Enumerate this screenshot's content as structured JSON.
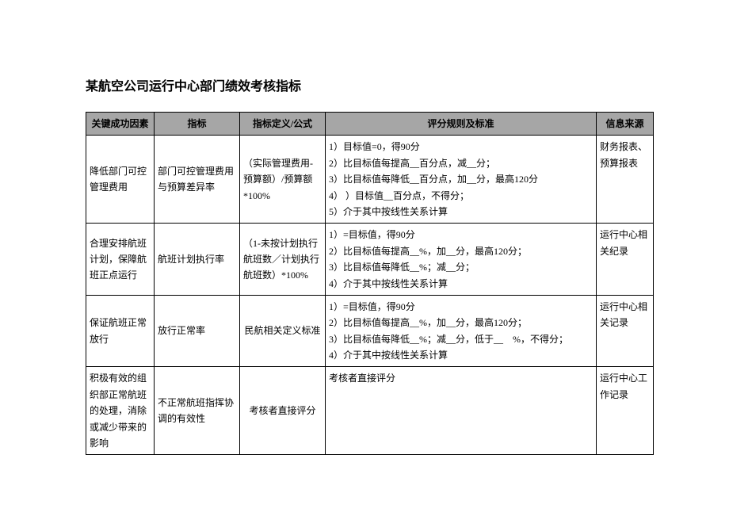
{
  "title": "某航空公司运行中心部门绩效考核指标",
  "background_color": "#ffffff",
  "header_bg": "#a6a6a6",
  "border_color": "#000000",
  "columns": [
    {
      "key": "factor",
      "label": "关键成功因素",
      "class": "col-factor"
    },
    {
      "key": "metric",
      "label": "指标",
      "class": "col-metric"
    },
    {
      "key": "formula",
      "label": "指标定义/公式",
      "class": "col-formula"
    },
    {
      "key": "rules",
      "label": "评分规则及标准",
      "class": "col-rules"
    },
    {
      "key": "source",
      "label": "信息来源",
      "class": "col-source"
    }
  ],
  "rows": [
    {
      "factor": "降低部门可控管理费用",
      "metric": "部门可控管理费用与预算差异率",
      "formula": "（实际管理费用-预算额）/预算额*100%",
      "rules": "1）目标值=0，得90分\n2）比目标值每提高__百分点，减__分；\n3）比目标值每降低__百分点，加__分，最高120分\n4） ）目标值__百分点，不得分；\n5）介于其中按线性关系计算",
      "source": "财务报表、预算报表"
    },
    {
      "factor": "合理安排航班计划，保障航班正点运行",
      "metric": "航班计划执行率",
      "formula": "（1-未按计划执行航班数／计划执行航班数）*100%",
      "rules": "1）=目标值，得90分\n2）比目标值每提高__%，加__分，最高120分；\n3）比目标值每降低__%；减__分；\n4）介于其中按线性关系计算",
      "source": "运行中心相关纪录"
    },
    {
      "factor": "保证航班正常放行",
      "metric": "放行正常率",
      "formula": "民航相关定义标准",
      "rules": "1）=目标值，得90分\n2）比目标值每提高__%，加__分，最高120分；\n3）比目标值每降低__%；减__分，低于__　%，不得分；\n4）介于其中按线性关系计算",
      "source": "运行中心相关记录"
    },
    {
      "factor": "积极有效的组织部正常航班的处理，消除或减少带来的影响",
      "metric": "不正常航班指挥协调的有效性",
      "formula": "考核者直接评分",
      "rules": "考核者直接评分",
      "source": "运行中心工作记录"
    }
  ]
}
